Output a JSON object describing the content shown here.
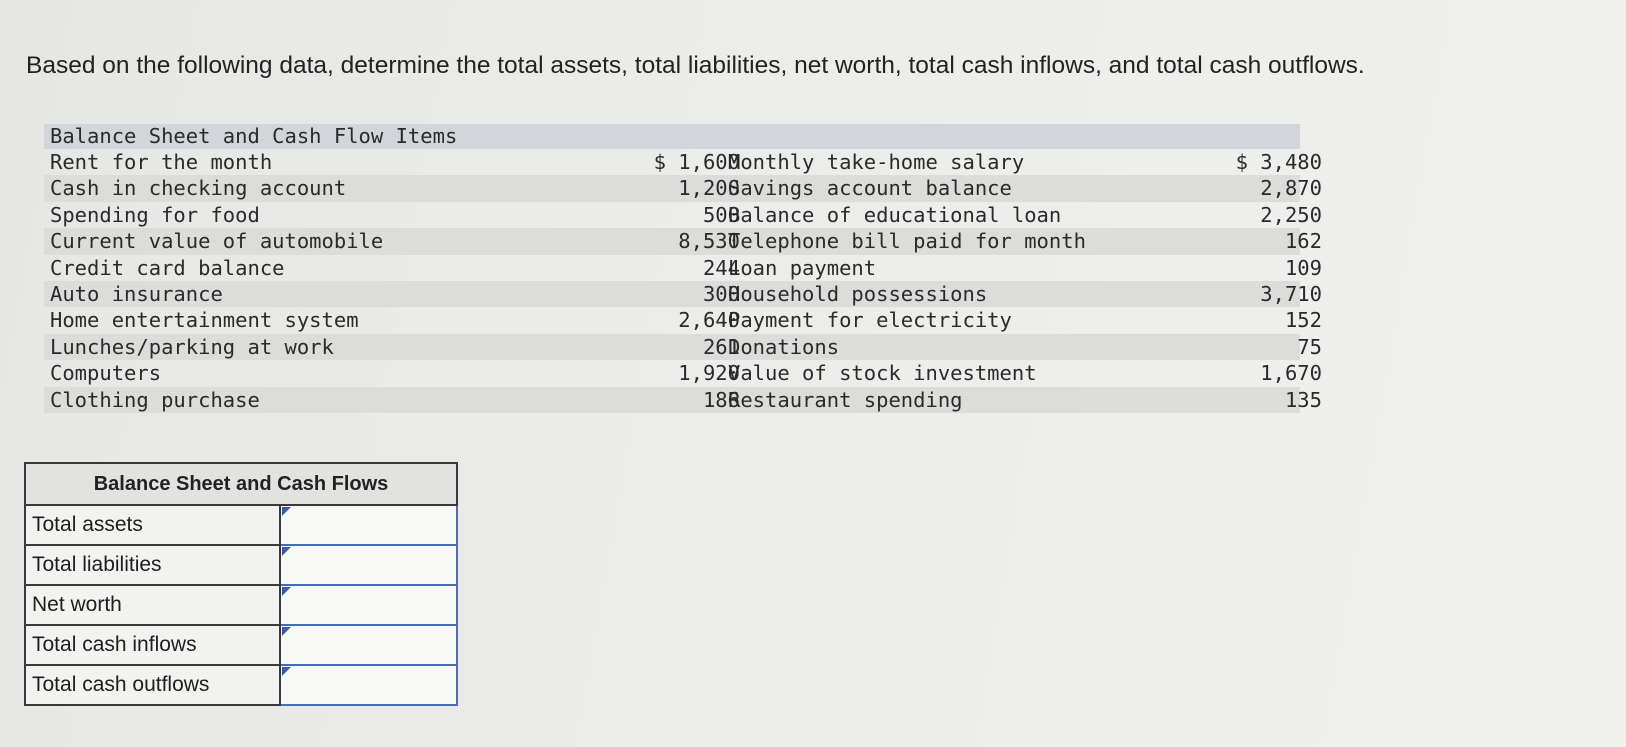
{
  "question": "Based on the following data, determine the total assets, total liabilities, net worth, total cash inflows, and total cash outflows.",
  "data_table": {
    "header": "Balance Sheet and Cash Flow Items",
    "rows": [
      {
        "label1": "Rent for the month",
        "value1": "$ 1,600",
        "label2": "Monthly take-home salary",
        "value2": "$ 3,480"
      },
      {
        "label1": "Cash in checking account",
        "value1": "1,200",
        "label2": "Savings account balance",
        "value2": "2,870"
      },
      {
        "label1": "Spending for food",
        "value1": "500",
        "label2": "Balance of educational loan",
        "value2": "2,250"
      },
      {
        "label1": "Current value of automobile",
        "value1": "8,530",
        "label2": "Telephone bill paid for month",
        "value2": "162"
      },
      {
        "label1": "Credit card balance",
        "value1": "244",
        "label2": "Loan payment",
        "value2": "109"
      },
      {
        "label1": "Auto insurance",
        "value1": "300",
        "label2": "Household possessions",
        "value2": "3,710"
      },
      {
        "label1": "Home entertainment system",
        "value1": "2,640",
        "label2": "Payment for electricity",
        "value2": "152"
      },
      {
        "label1": "Lunches/parking at work",
        "value1": "261",
        "label2": "Donations",
        "value2": "75"
      },
      {
        "label1": "Computers",
        "value1": "1,920",
        "label2": "Value of stock investment",
        "value2": "1,670"
      },
      {
        "label1": "Clothing purchase",
        "value1": "186",
        "label2": "Restaurant spending",
        "value2": "135"
      }
    ]
  },
  "answer_table": {
    "header": "Balance Sheet and Cash Flows",
    "rows": [
      {
        "label": "Total assets",
        "value": ""
      },
      {
        "label": "Total liabilities",
        "value": ""
      },
      {
        "label": "Net worth",
        "value": ""
      },
      {
        "label": "Total cash inflows",
        "value": ""
      },
      {
        "label": "Total cash outflows",
        "value": ""
      }
    ]
  }
}
